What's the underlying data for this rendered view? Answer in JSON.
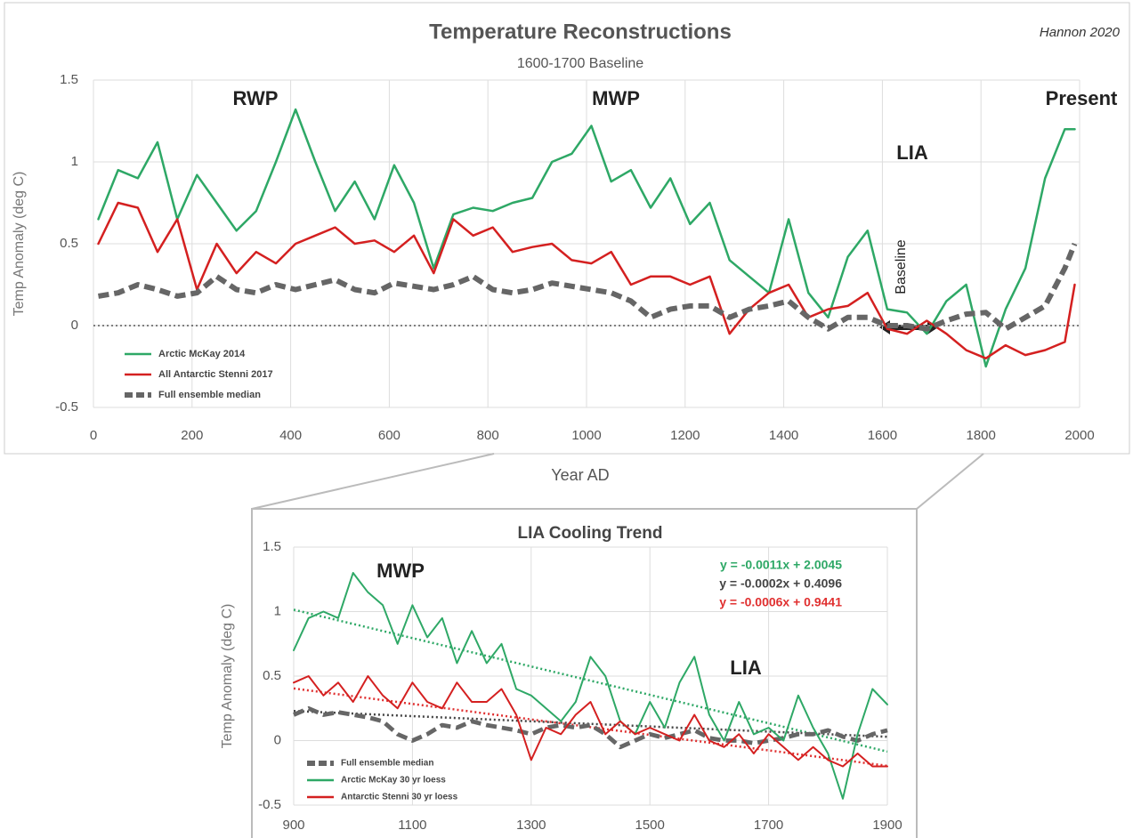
{
  "chart_data": [
    {
      "type": "line",
      "title": "Temperature Reconstructions",
      "subtitle": "1600-1700 Baseline",
      "credit": "Hannon 2020",
      "x_label": "Year AD",
      "y_label": "Temp Anomaly (deg C)",
      "x": [
        10,
        50,
        90,
        130,
        170,
        210,
        250,
        290,
        330,
        370,
        410,
        450,
        490,
        530,
        570,
        610,
        650,
        690,
        730,
        770,
        810,
        850,
        890,
        930,
        970,
        1010,
        1050,
        1090,
        1130,
        1170,
        1210,
        1250,
        1290,
        1330,
        1370,
        1410,
        1450,
        1490,
        1530,
        1570,
        1610,
        1650,
        1690,
        1730,
        1770,
        1810,
        1850,
        1890,
        1930,
        1970,
        1990
      ],
      "series": [
        {
          "name": "Arctic McKay 2014",
          "color": "#2ea866",
          "values": [
            0.65,
            0.95,
            0.9,
            1.12,
            0.65,
            0.92,
            0.75,
            0.58,
            0.7,
            1.0,
            1.32,
            1.0,
            0.7,
            0.88,
            0.65,
            0.98,
            0.75,
            0.35,
            0.68,
            0.72,
            0.7,
            0.75,
            0.78,
            1.0,
            1.05,
            1.22,
            0.88,
            0.95,
            0.72,
            0.9,
            0.62,
            0.75,
            0.4,
            0.3,
            0.2,
            0.65,
            0.2,
            0.05,
            0.42,
            0.58,
            0.1,
            0.08,
            -0.05,
            0.15,
            0.25,
            -0.25,
            0.1,
            0.35,
            0.9,
            1.2,
            1.2
          ]
        },
        {
          "name": "All Antarctic Stenni 2017",
          "color": "#d42020",
          "values": [
            0.5,
            0.75,
            0.72,
            0.45,
            0.65,
            0.22,
            0.5,
            0.32,
            0.45,
            0.38,
            0.5,
            0.55,
            0.6,
            0.5,
            0.52,
            0.45,
            0.55,
            0.32,
            0.65,
            0.55,
            0.6,
            0.45,
            0.48,
            0.5,
            0.4,
            0.38,
            0.45,
            0.25,
            0.3,
            0.3,
            0.25,
            0.3,
            -0.05,
            0.1,
            0.2,
            0.25,
            0.05,
            0.1,
            0.12,
            0.2,
            -0.02,
            -0.05,
            0.03,
            -0.05,
            -0.15,
            -0.2,
            -0.12,
            -0.18,
            -0.15,
            -0.1,
            0.25
          ]
        },
        {
          "name": "Full ensemble median",
          "color": "#666666",
          "dash": true,
          "values": [
            0.18,
            0.2,
            0.25,
            0.22,
            0.18,
            0.2,
            0.3,
            0.22,
            0.2,
            0.25,
            0.22,
            0.25,
            0.28,
            0.22,
            0.2,
            0.26,
            0.24,
            0.22,
            0.25,
            0.3,
            0.22,
            0.2,
            0.22,
            0.26,
            0.24,
            0.22,
            0.2,
            0.15,
            0.05,
            0.1,
            0.12,
            0.12,
            0.05,
            0.1,
            0.12,
            0.15,
            0.05,
            -0.02,
            0.05,
            0.05,
            0.0,
            0.0,
            -0.02,
            0.03,
            0.07,
            0.08,
            -0.02,
            0.05,
            0.12,
            0.35,
            0.5
          ]
        }
      ],
      "xlim": [
        0,
        2000
      ],
      "xticks": [
        0,
        200,
        400,
        600,
        800,
        1000,
        1200,
        1400,
        1600,
        1800,
        2000
      ],
      "ylim": [
        -0.5,
        1.5
      ],
      "yticks": [
        -0.5,
        0,
        0.5,
        1,
        1.5
      ],
      "grid": true,
      "zero_line": true,
      "legend": "lower left",
      "annotations": [
        "RWP",
        "MWP",
        "LIA",
        "Present",
        "Baseline"
      ]
    },
    {
      "type": "line",
      "title": "LIA Cooling Trend",
      "y_label": "Temp Anomaly (deg C)",
      "x": [
        900,
        925,
        950,
        975,
        1000,
        1025,
        1050,
        1075,
        1100,
        1125,
        1150,
        1175,
        1200,
        1225,
        1250,
        1275,
        1300,
        1325,
        1350,
        1375,
        1400,
        1425,
        1450,
        1475,
        1500,
        1525,
        1550,
        1575,
        1600,
        1625,
        1650,
        1675,
        1700,
        1725,
        1750,
        1775,
        1800,
        1825,
        1850,
        1875,
        1900
      ],
      "series": [
        {
          "name": "Full ensemble median",
          "color": "#666666",
          "dash": true,
          "values": [
            0.2,
            0.25,
            0.2,
            0.22,
            0.2,
            0.18,
            0.15,
            0.05,
            0.0,
            0.05,
            0.12,
            0.1,
            0.15,
            0.12,
            0.1,
            0.08,
            0.05,
            0.1,
            0.12,
            0.1,
            0.12,
            0.05,
            -0.05,
            0.0,
            0.05,
            0.02,
            0.05,
            0.08,
            0.02,
            0.0,
            0.0,
            -0.02,
            0.0,
            0.02,
            0.05,
            0.05,
            0.08,
            0.03,
            0.0,
            0.05,
            0.08
          ]
        },
        {
          "name": "Arctic McKay 30 yr loess",
          "color": "#2ea866",
          "values": [
            0.7,
            0.95,
            1.0,
            0.95,
            1.3,
            1.15,
            1.05,
            0.75,
            1.05,
            0.8,
            0.95,
            0.6,
            0.85,
            0.6,
            0.75,
            0.4,
            0.35,
            0.25,
            0.15,
            0.3,
            0.65,
            0.5,
            0.15,
            0.05,
            0.3,
            0.1,
            0.45,
            0.65,
            0.2,
            0.0,
            0.3,
            0.05,
            0.1,
            0.0,
            0.35,
            0.1,
            -0.1,
            -0.45,
            0.05,
            0.4,
            0.28
          ]
        },
        {
          "name": "Antarctic Stenni 30 yr loess",
          "color": "#d42020",
          "values": [
            0.45,
            0.5,
            0.35,
            0.45,
            0.3,
            0.5,
            0.35,
            0.25,
            0.45,
            0.3,
            0.25,
            0.45,
            0.3,
            0.3,
            0.4,
            0.2,
            -0.15,
            0.1,
            0.05,
            0.2,
            0.3,
            0.05,
            0.15,
            0.05,
            0.1,
            0.05,
            0.0,
            0.2,
            0.0,
            -0.05,
            0.05,
            -0.1,
            0.05,
            -0.05,
            -0.15,
            -0.05,
            -0.15,
            -0.2,
            -0.1,
            -0.2,
            -0.2
          ]
        }
      ],
      "trendlines": [
        {
          "label": "y = -0.0011x + 2.0045",
          "slope": -0.0011,
          "intercept": 2.0045,
          "color": "#2ea866"
        },
        {
          "label": "y = -0.0002x + 0.4096",
          "slope": -0.0002,
          "intercept": 0.4096,
          "color": "#444444"
        },
        {
          "label": "y = -0.0006x + 0.9441",
          "slope": -0.0006,
          "intercept": 0.9441,
          "color": "#e03030"
        }
      ],
      "xlim": [
        900,
        1900
      ],
      "xticks": [
        900,
        1100,
        1300,
        1500,
        1700,
        1900
      ],
      "ylim": [
        -0.5,
        1.5
      ],
      "yticks": [
        -0.5,
        0,
        0.5,
        1,
        1.5
      ],
      "grid": true,
      "legend": "lower left",
      "annotations": [
        "MWP",
        "LIA"
      ]
    }
  ]
}
